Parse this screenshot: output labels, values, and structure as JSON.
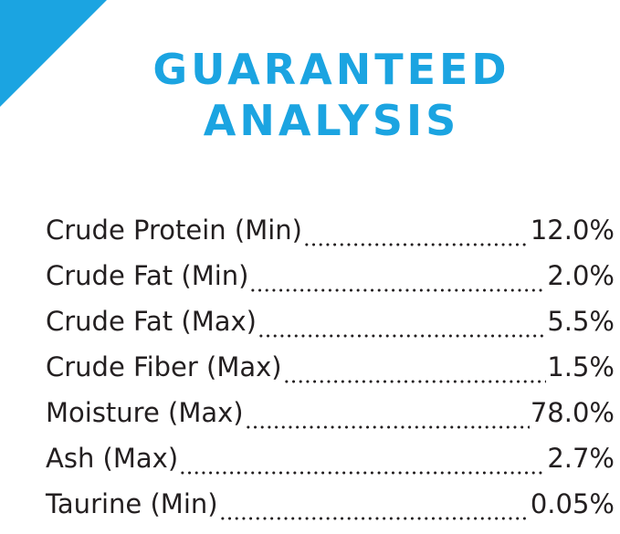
{
  "header": {
    "title_lines": [
      "GUARANTEED",
      "ANALYSIS"
    ]
  },
  "table": {
    "rows": [
      [
        "Crude Protein (Min)",
        "12.0%"
      ],
      [
        "Crude Fat (Min)",
        "2.0%"
      ],
      [
        "Crude Fat (Max)",
        "5.5%"
      ],
      [
        "Crude Fiber (Max)",
        "1.5%"
      ],
      [
        "Moisture (Max)",
        "78.0%"
      ],
      [
        "Ash (Max)",
        "2.7%"
      ],
      [
        "Taurine (Min)",
        "0.05%"
      ]
    ]
  }
}
